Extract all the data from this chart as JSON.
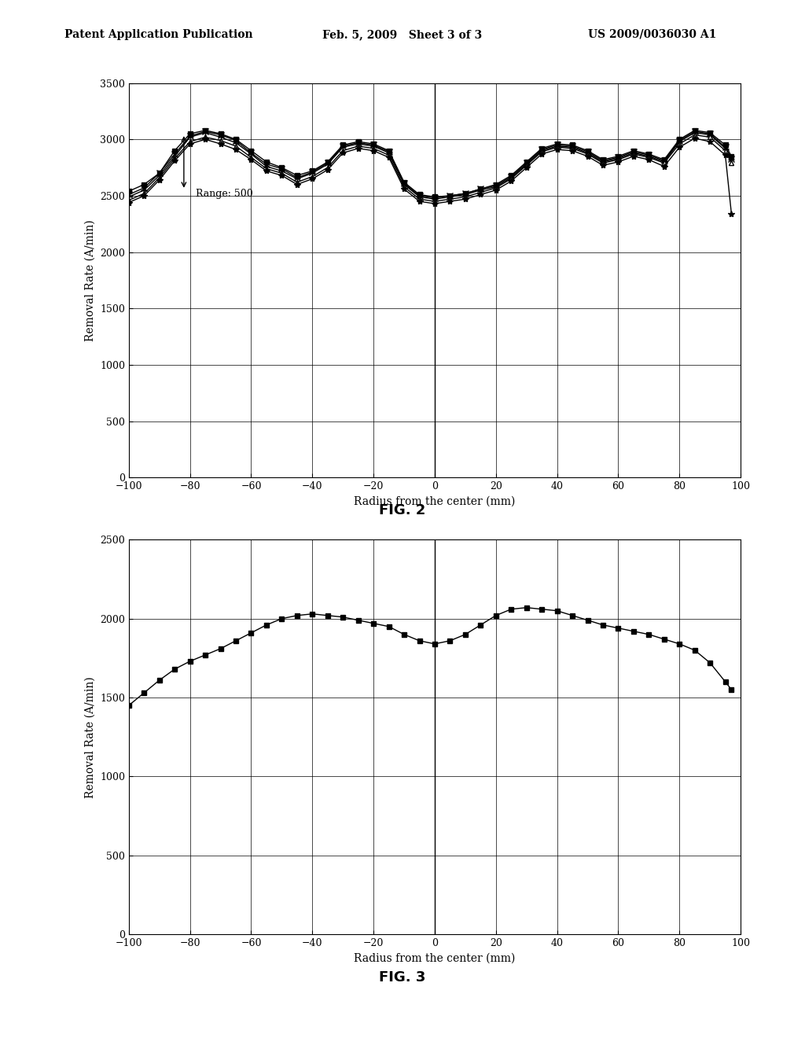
{
  "header_left": "Patent Application Publication",
  "header_mid": "Feb. 5, 2009   Sheet 3 of 3",
  "header_right": "US 2009/0036030 A1",
  "fig2_title": "FIG. 2",
  "fig3_title": "FIG. 3",
  "xlabel": "Radius from the center (mm)",
  "ylabel": "Removal Rate (A/min)",
  "fig2_ylim": [
    0,
    3500
  ],
  "fig2_yticks": [
    0,
    500,
    1000,
    1500,
    2000,
    2500,
    3000,
    3500
  ],
  "fig3_ylim": [
    0,
    2500
  ],
  "fig3_yticks": [
    0,
    500,
    1000,
    1500,
    2000,
    2500
  ],
  "xlim": [
    -100,
    100
  ],
  "xticks": [
    -100,
    -80,
    -60,
    -40,
    -20,
    0,
    20,
    40,
    60,
    80,
    100
  ],
  "range_label": "Range: 500",
  "background_color": "#ffffff",
  "line_color": "#000000",
  "fig2_x": [
    -100,
    -95,
    -90,
    -85,
    -80,
    -75,
    -70,
    -65,
    -60,
    -55,
    -50,
    -45,
    -40,
    -35,
    -30,
    -25,
    -20,
    -15,
    -10,
    -5,
    0,
    5,
    10,
    15,
    20,
    25,
    30,
    35,
    40,
    45,
    50,
    55,
    60,
    65,
    70,
    75,
    80,
    85,
    90,
    95,
    97
  ],
  "fig2_series1": [
    2540,
    2600,
    2700,
    2900,
    3050,
    3080,
    3050,
    3000,
    2900,
    2800,
    2750,
    2680,
    2720,
    2800,
    2950,
    2980,
    2960,
    2900,
    2620,
    2510,
    2490,
    2500,
    2520,
    2560,
    2600,
    2680,
    2800,
    2920,
    2960,
    2950,
    2900,
    2820,
    2850,
    2900,
    2870,
    2820,
    3000,
    3080,
    3060,
    2950,
    2850
  ],
  "fig2_series2": [
    2490,
    2550,
    2680,
    2850,
    3020,
    3060,
    3020,
    2970,
    2870,
    2760,
    2720,
    2650,
    2700,
    2780,
    2930,
    2960,
    2940,
    2880,
    2600,
    2490,
    2470,
    2490,
    2510,
    2550,
    2580,
    2660,
    2780,
    2900,
    2940,
    2930,
    2880,
    2800,
    2830,
    2880,
    2850,
    2800,
    2980,
    3060,
    3040,
    2920,
    2820
  ],
  "fig2_series3": [
    2510,
    2570,
    2700,
    2870,
    3030,
    3070,
    3040,
    2990,
    2880,
    2780,
    2740,
    2660,
    2710,
    2790,
    2940,
    2970,
    2950,
    2890,
    2610,
    2500,
    2480,
    2500,
    2520,
    2560,
    2590,
    2670,
    2790,
    2910,
    2950,
    2940,
    2890,
    2810,
    2840,
    2890,
    2860,
    2810,
    2990,
    3070,
    3050,
    2930,
    2830
  ],
  "fig2_series4": [
    2460,
    2520,
    2660,
    2830,
    2980,
    3020,
    2990,
    2940,
    2840,
    2740,
    2700,
    2620,
    2670,
    2750,
    2900,
    2940,
    2920,
    2860,
    2580,
    2470,
    2450,
    2470,
    2490,
    2530,
    2570,
    2650,
    2770,
    2890,
    2930,
    2920,
    2870,
    2790,
    2820,
    2870,
    2840,
    2790,
    2960,
    3040,
    3020,
    2900,
    2790
  ],
  "fig2_series5": [
    2440,
    2500,
    2640,
    2810,
    2960,
    3000,
    2960,
    2910,
    2820,
    2720,
    2680,
    2600,
    2650,
    2730,
    2880,
    2920,
    2900,
    2840,
    2560,
    2450,
    2430,
    2450,
    2470,
    2510,
    2550,
    2630,
    2750,
    2870,
    2910,
    2900,
    2850,
    2770,
    2800,
    2850,
    2820,
    2760,
    2930,
    3010,
    2980,
    2860,
    2340
  ],
  "fig3_x": [
    -100,
    -95,
    -90,
    -85,
    -80,
    -75,
    -70,
    -65,
    -60,
    -55,
    -50,
    -45,
    -40,
    -35,
    -30,
    -25,
    -20,
    -15,
    -10,
    -5,
    0,
    5,
    10,
    15,
    20,
    25,
    30,
    35,
    40,
    45,
    50,
    55,
    60,
    65,
    70,
    75,
    80,
    85,
    90,
    95,
    97
  ],
  "fig3_series1": [
    1450,
    1530,
    1610,
    1680,
    1730,
    1770,
    1810,
    1860,
    1910,
    1960,
    2000,
    2020,
    2030,
    2020,
    2010,
    1990,
    1970,
    1950,
    1900,
    1860,
    1840,
    1860,
    1900,
    1960,
    2020,
    2060,
    2070,
    2060,
    2050,
    2020,
    1990,
    1960,
    1940,
    1920,
    1900,
    1870,
    1840,
    1800,
    1720,
    1600,
    1550
  ]
}
